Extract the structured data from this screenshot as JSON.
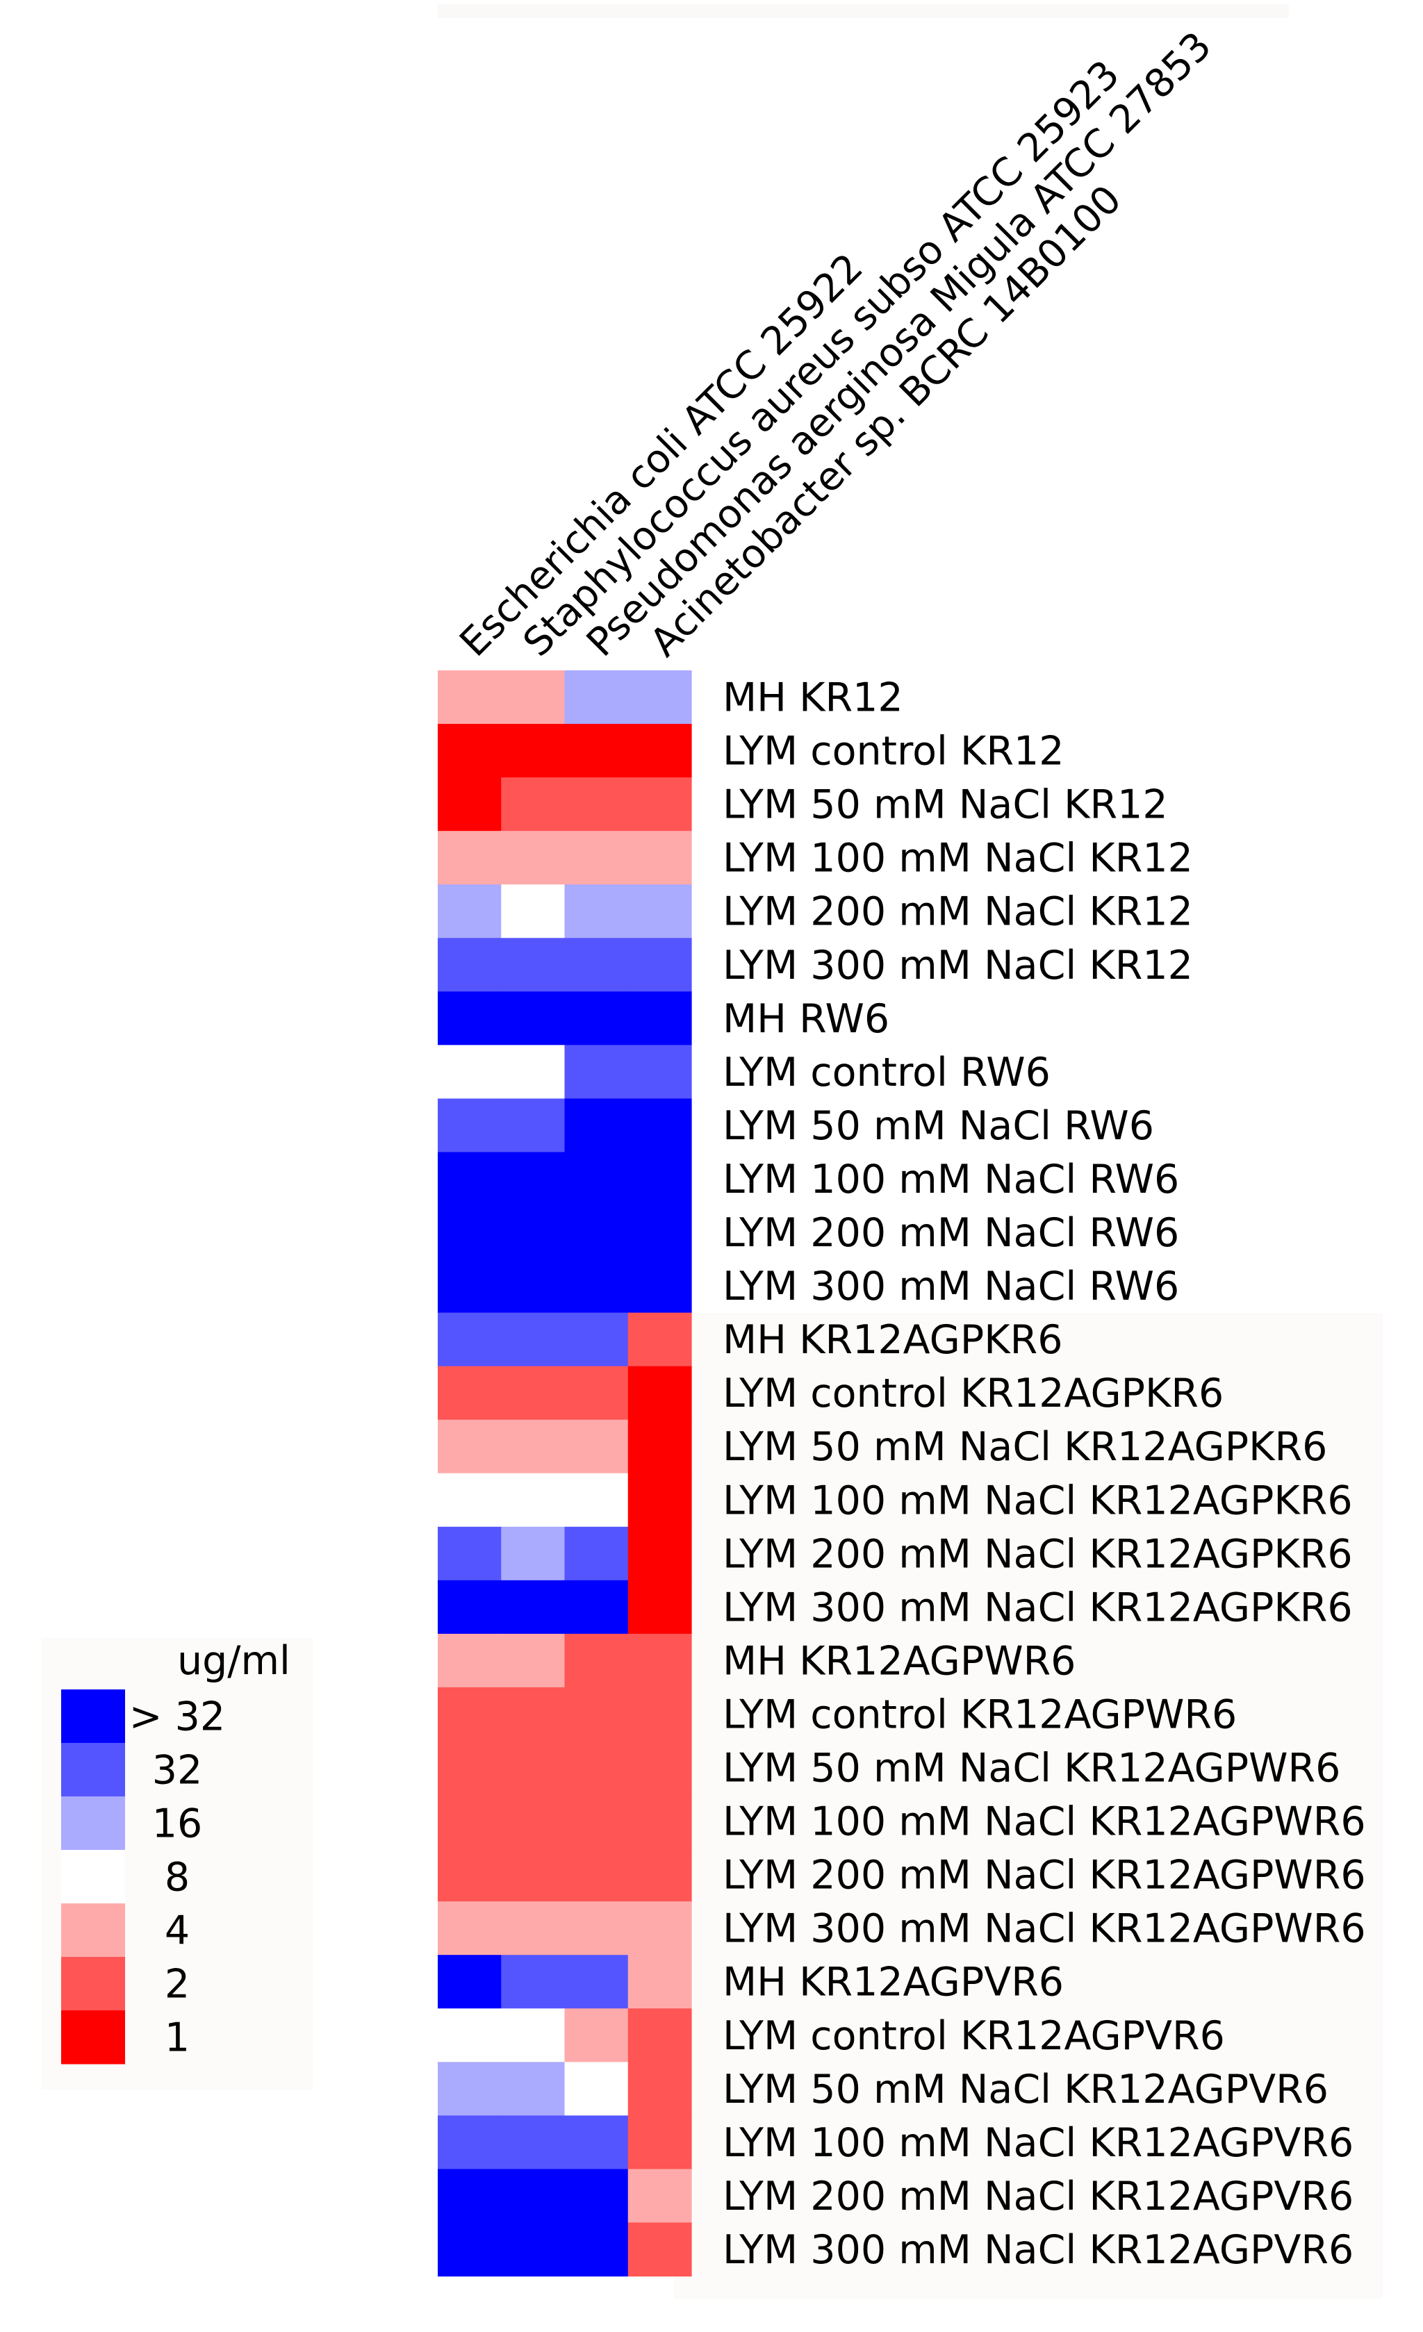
{
  "chart_data": {
    "type": "heatmap",
    "title": "",
    "columns": [
      "Escherichia coli ATCC 25922",
      "Staphylococcus aureus subso ATCC 25923",
      "Pseudomonas aerginosa Migula ATCC 27853",
      "Acinetobacter sp. BCRC 14B0100"
    ],
    "rows": [
      "MH KR12",
      "LYM control KR12",
      "LYM 50 mM NaCl KR12",
      "LYM 100 mM NaCl KR12",
      "LYM 200 mM NaCl KR12",
      "LYM 300 mM NaCl KR12",
      "MH RW6",
      "LYM control RW6",
      "LYM 50 mM NaCl RW6",
      "LYM 100 mM NaCl RW6",
      "LYM 200 mM NaCl RW6",
      "LYM 300 mM NaCl RW6",
      "MH KR12AGPKR6",
      "LYM control KR12AGPKR6",
      "LYM 50 mM NaCl KR12AGPKR6",
      "LYM 100 mM NaCl KR12AGPKR6",
      "LYM 200 mM NaCl KR12AGPKR6",
      "LYM 300 mM NaCl KR12AGPKR6",
      "MH KR12AGPWR6",
      "LYM control KR12AGPWR6",
      "LYM 50 mM NaCl KR12AGPWR6",
      "LYM 100 mM NaCl KR12AGPWR6",
      "LYM 200 mM NaCl KR12AGPWR6",
      "LYM 300 mM NaCl KR12AGPWR6",
      "MH KR12AGPVR6",
      "LYM control KR12AGPVR6",
      "LYM 50 mM NaCl KR12AGPVR6",
      "LYM 100 mM NaCl KR12AGPVR6",
      "LYM 200 mM NaCl KR12AGPVR6",
      "LYM 300 mM NaCl KR12AGPVR6"
    ],
    "values": [
      [
        4,
        4,
        16,
        16
      ],
      [
        1,
        1,
        1,
        1
      ],
      [
        1,
        2,
        2,
        2
      ],
      [
        4,
        4,
        4,
        4
      ],
      [
        16,
        8,
        16,
        16
      ],
      [
        32,
        32,
        32,
        32
      ],
      [
        ">32",
        ">32",
        ">32",
        ">32"
      ],
      [
        8,
        8,
        32,
        32
      ],
      [
        32,
        32,
        ">32",
        ">32"
      ],
      [
        ">32",
        ">32",
        ">32",
        ">32"
      ],
      [
        ">32",
        ">32",
        ">32",
        ">32"
      ],
      [
        ">32",
        ">32",
        ">32",
        ">32"
      ],
      [
        32,
        32,
        32,
        2
      ],
      [
        2,
        2,
        2,
        1
      ],
      [
        4,
        4,
        4,
        1
      ],
      [
        8,
        8,
        8,
        1
      ],
      [
        32,
        16,
        32,
        1
      ],
      [
        ">32",
        ">32",
        ">32",
        1
      ],
      [
        4,
        4,
        2,
        2
      ],
      [
        2,
        2,
        2,
        2
      ],
      [
        2,
        2,
        2,
        2
      ],
      [
        2,
        2,
        2,
        2
      ],
      [
        2,
        2,
        2,
        2
      ],
      [
        4,
        4,
        4,
        4
      ],
      [
        ">32",
        32,
        32,
        4
      ],
      [
        8,
        8,
        4,
        2
      ],
      [
        16,
        16,
        8,
        2
      ],
      [
        32,
        32,
        32,
        2
      ],
      [
        ">32",
        ">32",
        ">32",
        4
      ],
      [
        ">32",
        ">32",
        ">32",
        2
      ]
    ],
    "legend": {
      "title": "ug/ml",
      "placement": "left",
      "levels": [
        {
          "key": ">32",
          "label": "> 32",
          "color": "#0000ff"
        },
        {
          "key": "32",
          "label": "32",
          "color": "#5555ff"
        },
        {
          "key": "16",
          "label": "16",
          "color": "#aaaaff"
        },
        {
          "key": "8",
          "label": "8",
          "color": "#ffffff"
        },
        {
          "key": "4",
          "label": "4",
          "color": "#ffaaaa"
        },
        {
          "key": "2",
          "label": "2",
          "color": "#ff5555"
        },
        {
          "key": "1",
          "label": "1",
          "color": "#ff0000"
        }
      ]
    }
  }
}
